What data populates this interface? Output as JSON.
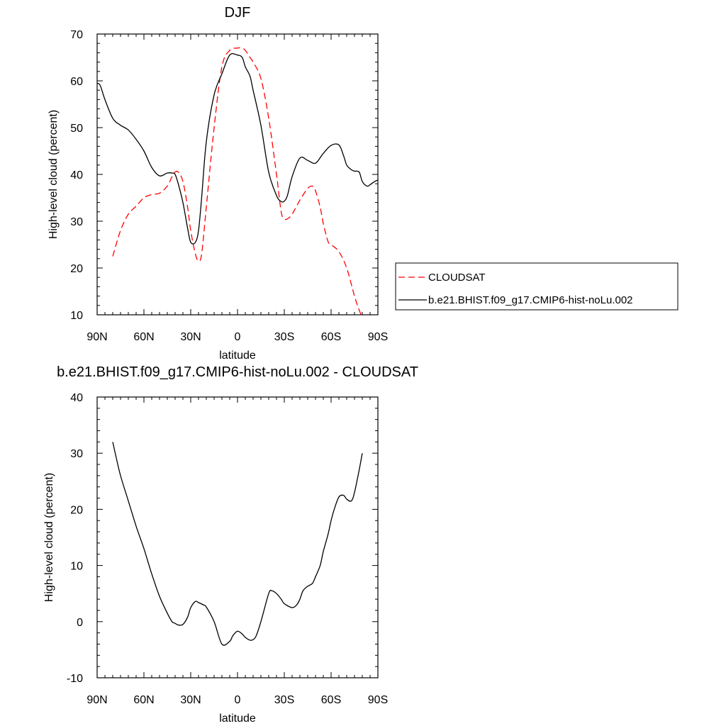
{
  "chart_data": [
    {
      "type": "line",
      "title": "DJF",
      "xlabel": "latitude",
      "ylabel": "High-level cloud (percent)",
      "xlim": [
        -90,
        90
      ],
      "ylim": [
        10,
        70
      ],
      "x_ticks": [
        -90,
        -60,
        -30,
        0,
        30,
        60,
        90
      ],
      "x_tick_labels": [
        "90N",
        "60N",
        "30N",
        "0",
        "30S",
        "60S",
        "90S"
      ],
      "y_ticks": [
        10,
        20,
        30,
        40,
        50,
        60,
        70
      ],
      "y_tick_labels": [
        "10",
        "20",
        "30",
        "40",
        "50",
        "60",
        "70"
      ],
      "grid": false,
      "legend_position": "right",
      "series": [
        {
          "name": "CLOUDSAT",
          "color": "#ff0000",
          "dash": true,
          "x": [
            -80,
            -75,
            -70,
            -65,
            -60,
            -55,
            -50,
            -45,
            -42,
            -40,
            -38,
            -35,
            -32,
            -30,
            -27,
            -25,
            -23,
            -20,
            -15,
            -10,
            -5,
            0,
            3,
            5,
            8,
            10,
            15,
            20,
            25,
            28,
            30,
            32,
            35,
            40,
            45,
            48,
            50,
            53,
            55,
            58,
            60,
            65,
            70,
            75,
            78,
            80
          ],
          "y": [
            22.5,
            28,
            31.5,
            33.2,
            35,
            35.7,
            36,
            37.5,
            39.5,
            40.5,
            40.5,
            38.5,
            33,
            28,
            23,
            21.5,
            23,
            33,
            50,
            63,
            66.5,
            67,
            67,
            66.5,
            65,
            64,
            60.5,
            52,
            40,
            32,
            30.5,
            30.5,
            31.5,
            34.5,
            37,
            37.5,
            36.5,
            33,
            29.5,
            25.7,
            25,
            23.5,
            20,
            14,
            11,
            9.5
          ]
        },
        {
          "name": "b.e21.BHIST.f09_g17.CMIP6-hist-noLu.002",
          "color": "#000000",
          "dash": false,
          "x": [
            -90,
            -88,
            -85,
            -80,
            -75,
            -70,
            -65,
            -60,
            -55,
            -50,
            -45,
            -42,
            -40,
            -38,
            -35,
            -32,
            -30,
            -27,
            -25,
            -23,
            -20,
            -15,
            -10,
            -5,
            0,
            3,
            5,
            8,
            10,
            15,
            20,
            25,
            28,
            30,
            32,
            35,
            40,
            45,
            50,
            55,
            60,
            65,
            68,
            70,
            73,
            75,
            78,
            80,
            83,
            85,
            88,
            90
          ],
          "y": [
            59.5,
            59,
            56,
            52,
            50.5,
            49.5,
            47.5,
            45,
            41.5,
            39.7,
            40.3,
            40.3,
            40,
            38,
            34,
            28.5,
            25.5,
            25.5,
            28,
            35,
            47,
            57,
            61.5,
            65.5,
            65.5,
            65,
            63,
            61,
            58,
            50.5,
            40.5,
            35.5,
            34.2,
            34.3,
            35.5,
            39.5,
            43.5,
            43,
            42.4,
            44.5,
            46.2,
            46.3,
            44,
            42,
            41,
            40.7,
            40.5,
            38.5,
            37.5,
            37.8,
            38.5,
            38.8
          ]
        }
      ]
    },
    {
      "type": "line",
      "title": "b.e21.BHIST.f09_g17.CMIP6-hist-noLu.002 - CLOUDSAT",
      "xlabel": "latitude",
      "ylabel": "High-level cloud (percent)",
      "xlim": [
        -90,
        90
      ],
      "ylim": [
        -10,
        40
      ],
      "x_ticks": [
        -90,
        -60,
        -30,
        0,
        30,
        60,
        90
      ],
      "x_tick_labels": [
        "90N",
        "60N",
        "30N",
        "0",
        "30S",
        "60S",
        "90S"
      ],
      "y_ticks": [
        -10,
        0,
        10,
        20,
        30,
        40
      ],
      "y_tick_labels": [
        "-10",
        "0",
        "10",
        "20",
        "30",
        "40"
      ],
      "grid": false,
      "series": [
        {
          "color": "#000000",
          "dash": false,
          "x": [
            -80,
            -78,
            -75,
            -70,
            -65,
            -60,
            -55,
            -50,
            -45,
            -42,
            -40,
            -38,
            -35,
            -32,
            -30,
            -27,
            -25,
            -22,
            -20,
            -15,
            -10,
            -5,
            -3,
            0,
            3,
            5,
            8,
            10,
            12,
            15,
            20,
            22,
            25,
            28,
            30,
            35,
            38,
            40,
            42,
            45,
            48,
            50,
            53,
            55,
            58,
            60,
            62,
            65,
            68,
            70,
            73,
            75,
            78,
            80
          ],
          "y": [
            32,
            29.5,
            26,
            21.5,
            17,
            13,
            8.5,
            4.5,
            1.5,
            0,
            -0.3,
            -0.6,
            -0.5,
            0.8,
            2.5,
            3.6,
            3.4,
            3,
            2.6,
            0,
            -4,
            -3.5,
            -2.5,
            -1.7,
            -2.2,
            -2.8,
            -3.3,
            -3.2,
            -2.5,
            0,
            5,
            5.5,
            5,
            4,
            3.2,
            2.5,
            3,
            4,
            5.5,
            6.3,
            6.8,
            8,
            10,
            12.5,
            15.5,
            18,
            20,
            22.2,
            22.5,
            21.8,
            21.5,
            23,
            27,
            30
          ]
        }
      ]
    }
  ]
}
